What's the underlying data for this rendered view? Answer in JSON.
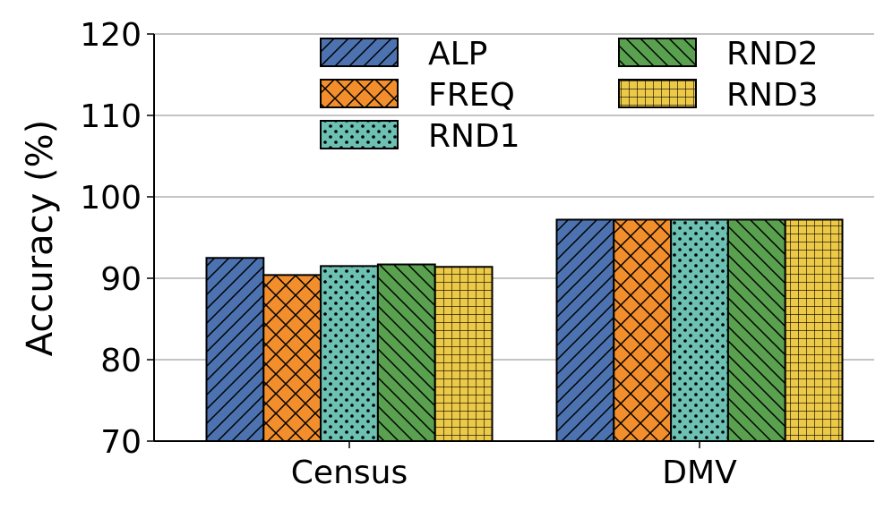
{
  "chart_data": {
    "type": "bar",
    "title": "",
    "xlabel": "",
    "ylabel": "Accuracy (%)",
    "ylim": [
      70,
      120
    ],
    "yticks": [
      70,
      80,
      90,
      100,
      110,
      120
    ],
    "grid": "horizontal",
    "legend_position": "top-right",
    "categories": [
      "Census",
      "DMV"
    ],
    "series": [
      {
        "name": "ALP",
        "values": [
          92.5,
          97.2
        ],
        "color": "#4c72b0",
        "pattern": "diagonal-forward"
      },
      {
        "name": "FREQ",
        "values": [
          90.4,
          97.2
        ],
        "color": "#f28e2b",
        "pattern": "crosshatch-diagonal"
      },
      {
        "name": "RND1",
        "values": [
          91.5,
          97.2
        ],
        "color": "#6cc1b3",
        "pattern": "dots"
      },
      {
        "name": "RND2",
        "values": [
          91.7,
          97.2
        ],
        "color": "#59a14f",
        "pattern": "diagonal-backward"
      },
      {
        "name": "RND3",
        "values": [
          91.4,
          97.2
        ],
        "color": "#edc948",
        "pattern": "grid"
      }
    ]
  }
}
